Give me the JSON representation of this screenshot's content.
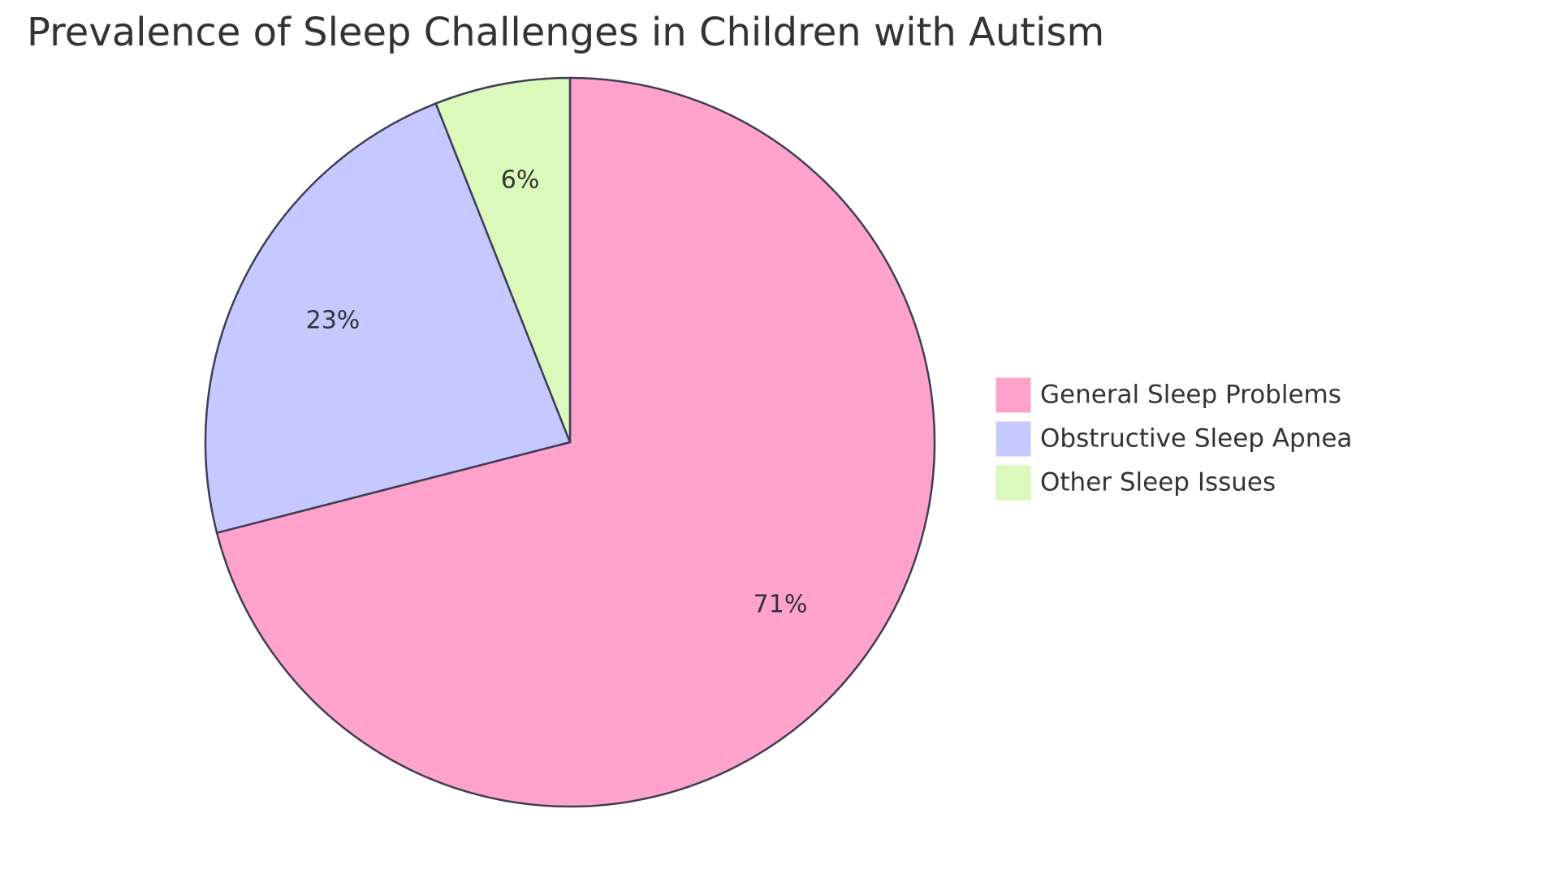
{
  "chart_data": {
    "type": "pie",
    "title": "Prevalence of Sleep Challenges in Children with Autism",
    "categories": [
      "General Sleep Problems",
      "Obstructive Sleep Apnea",
      "Other Sleep Issues"
    ],
    "values": [
      71,
      23,
      6
    ],
    "value_labels": [
      "71%",
      "23%",
      "6%"
    ],
    "colors": [
      "#ffa3cd",
      "#c6c9ff",
      "#daf9bb"
    ],
    "legend": "right"
  }
}
